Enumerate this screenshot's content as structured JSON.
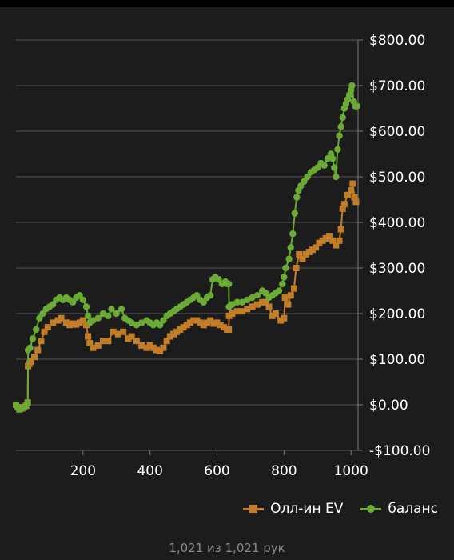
{
  "chart_data": {
    "type": "line",
    "title": "",
    "xlabel": "",
    "ylabel": "",
    "xlim": [
      0,
      1021
    ],
    "ylim": [
      -100,
      800
    ],
    "x_ticks": [
      200,
      400,
      600,
      800,
      1000
    ],
    "x_tick_labels": [
      "200",
      "400",
      "600",
      "800",
      "1000"
    ],
    "y_ticks": [
      800,
      700,
      600,
      500,
      400,
      300,
      200,
      100,
      0,
      -100
    ],
    "y_tick_labels": [
      "$800.00",
      "$700.00",
      "$600.00",
      "$500.00",
      "$400.00",
      "$300.00",
      "$200.00",
      "$100.00",
      "$0.00",
      "-$100.00"
    ],
    "y_axis_position": "right",
    "grid": true,
    "legend": "bottom-right",
    "series": [
      {
        "name": "Олл-ин EV",
        "color": "#c27d28",
        "marker": "square",
        "points": [
          [
            0,
            0
          ],
          [
            5,
            -5
          ],
          [
            10,
            -10
          ],
          [
            18,
            -8
          ],
          [
            25,
            -5
          ],
          [
            30,
            -2
          ],
          [
            35,
            5
          ],
          [
            36,
            85
          ],
          [
            40,
            90
          ],
          [
            45,
            95
          ],
          [
            55,
            105
          ],
          [
            65,
            120
          ],
          [
            75,
            140
          ],
          [
            85,
            160
          ],
          [
            95,
            170
          ],
          [
            110,
            180
          ],
          [
            125,
            185
          ],
          [
            135,
            190
          ],
          [
            150,
            180
          ],
          [
            160,
            175
          ],
          [
            170,
            178
          ],
          [
            180,
            176
          ],
          [
            190,
            180
          ],
          [
            200,
            185
          ],
          [
            210,
            175
          ],
          [
            215,
            150
          ],
          [
            220,
            135
          ],
          [
            230,
            125
          ],
          [
            245,
            130
          ],
          [
            260,
            140
          ],
          [
            275,
            140
          ],
          [
            290,
            160
          ],
          [
            305,
            155
          ],
          [
            320,
            160
          ],
          [
            335,
            145
          ],
          [
            345,
            150
          ],
          [
            360,
            140
          ],
          [
            375,
            130
          ],
          [
            390,
            125
          ],
          [
            400,
            130
          ],
          [
            410,
            125
          ],
          [
            420,
            120
          ],
          [
            430,
            118
          ],
          [
            440,
            125
          ],
          [
            450,
            140
          ],
          [
            460,
            150
          ],
          [
            470,
            155
          ],
          [
            480,
            160
          ],
          [
            490,
            165
          ],
          [
            500,
            170
          ],
          [
            510,
            175
          ],
          [
            520,
            180
          ],
          [
            530,
            185
          ],
          [
            540,
            185
          ],
          [
            550,
            180
          ],
          [
            560,
            175
          ],
          [
            570,
            180
          ],
          [
            580,
            185
          ],
          [
            590,
            178
          ],
          [
            600,
            180
          ],
          [
            610,
            175
          ],
          [
            620,
            170
          ],
          [
            630,
            165
          ],
          [
            635,
            165
          ],
          [
            636,
            195
          ],
          [
            645,
            200
          ],
          [
            660,
            205
          ],
          [
            675,
            205
          ],
          [
            690,
            210
          ],
          [
            705,
            215
          ],
          [
            720,
            220
          ],
          [
            735,
            225
          ],
          [
            745,
            225
          ],
          [
            755,
            215
          ],
          [
            765,
            195
          ],
          [
            775,
            200
          ],
          [
            790,
            185
          ],
          [
            800,
            190
          ],
          [
            803,
            235
          ],
          [
            812,
            220
          ],
          [
            820,
            240
          ],
          [
            830,
            255
          ],
          [
            836,
            300
          ],
          [
            845,
            330
          ],
          [
            855,
            320
          ],
          [
            865,
            330
          ],
          [
            875,
            335
          ],
          [
            885,
            340
          ],
          [
            895,
            345
          ],
          [
            905,
            355
          ],
          [
            915,
            360
          ],
          [
            925,
            365
          ],
          [
            935,
            370
          ],
          [
            945,
            360
          ],
          [
            955,
            350
          ],
          [
            965,
            360
          ],
          [
            970,
            385
          ],
          [
            975,
            430
          ],
          [
            980,
            440
          ],
          [
            990,
            460
          ],
          [
            1000,
            470
          ],
          [
            1005,
            485
          ],
          [
            1010,
            455
          ],
          [
            1015,
            445
          ]
        ]
      },
      {
        "name": "баланс",
        "color": "#6aaa35",
        "marker": "circle",
        "points": [
          [
            0,
            0
          ],
          [
            5,
            -5
          ],
          [
            10,
            -10
          ],
          [
            18,
            -8
          ],
          [
            25,
            -5
          ],
          [
            30,
            -2
          ],
          [
            35,
            5
          ],
          [
            36,
            120
          ],
          [
            42,
            125
          ],
          [
            50,
            145
          ],
          [
            60,
            165
          ],
          [
            70,
            190
          ],
          [
            80,
            200
          ],
          [
            90,
            210
          ],
          [
            100,
            215
          ],
          [
            110,
            220
          ],
          [
            120,
            230
          ],
          [
            130,
            235
          ],
          [
            140,
            230
          ],
          [
            150,
            235
          ],
          [
            160,
            230
          ],
          [
            170,
            225
          ],
          [
            180,
            235
          ],
          [
            190,
            240
          ],
          [
            200,
            230
          ],
          [
            210,
            215
          ],
          [
            215,
            195
          ],
          [
            220,
            180
          ],
          [
            230,
            185
          ],
          [
            245,
            190
          ],
          [
            260,
            200
          ],
          [
            275,
            195
          ],
          [
            285,
            210
          ],
          [
            300,
            200
          ],
          [
            315,
            210
          ],
          [
            325,
            190
          ],
          [
            335,
            185
          ],
          [
            345,
            180
          ],
          [
            360,
            175
          ],
          [
            375,
            180
          ],
          [
            390,
            185
          ],
          [
            400,
            180
          ],
          [
            410,
            175
          ],
          [
            420,
            180
          ],
          [
            430,
            175
          ],
          [
            440,
            185
          ],
          [
            450,
            195
          ],
          [
            460,
            200
          ],
          [
            470,
            205
          ],
          [
            480,
            210
          ],
          [
            490,
            215
          ],
          [
            500,
            220
          ],
          [
            510,
            225
          ],
          [
            520,
            230
          ],
          [
            530,
            235
          ],
          [
            540,
            240
          ],
          [
            550,
            230
          ],
          [
            560,
            225
          ],
          [
            570,
            235
          ],
          [
            580,
            240
          ],
          [
            587,
            275
          ],
          [
            595,
            280
          ],
          [
            605,
            275
          ],
          [
            615,
            265
          ],
          [
            625,
            270
          ],
          [
            630,
            265
          ],
          [
            635,
            265
          ],
          [
            636,
            215
          ],
          [
            645,
            220
          ],
          [
            660,
            225
          ],
          [
            675,
            225
          ],
          [
            690,
            230
          ],
          [
            705,
            235
          ],
          [
            720,
            240
          ],
          [
            735,
            250
          ],
          [
            745,
            245
          ],
          [
            755,
            235
          ],
          [
            765,
            240
          ],
          [
            775,
            245
          ],
          [
            785,
            250
          ],
          [
            795,
            265
          ],
          [
            800,
            280
          ],
          [
            805,
            300
          ],
          [
            815,
            320
          ],
          [
            820,
            345
          ],
          [
            826,
            375
          ],
          [
            832,
            420
          ],
          [
            838,
            455
          ],
          [
            843,
            470
          ],
          [
            850,
            480
          ],
          [
            860,
            490
          ],
          [
            870,
            500
          ],
          [
            880,
            510
          ],
          [
            890,
            515
          ],
          [
            900,
            520
          ],
          [
            910,
            530
          ],
          [
            920,
            525
          ],
          [
            930,
            540
          ],
          [
            940,
            550
          ],
          [
            945,
            540
          ],
          [
            950,
            520
          ],
          [
            955,
            500
          ],
          [
            960,
            560
          ],
          [
            965,
            590
          ],
          [
            970,
            610
          ],
          [
            975,
            630
          ],
          [
            980,
            650
          ],
          [
            985,
            660
          ],
          [
            990,
            670
          ],
          [
            995,
            680
          ],
          [
            1000,
            690
          ],
          [
            1003,
            700
          ],
          [
            1008,
            665
          ],
          [
            1013,
            655
          ],
          [
            1018,
            655
          ]
        ]
      }
    ]
  },
  "legend_items": [
    {
      "label": "Олл-ин EV",
      "color": "#c27d28",
      "marker": "square"
    },
    {
      "label": "баланс",
      "color": "#6aaa35",
      "marker": "circle"
    }
  ],
  "footer": {
    "hands_text": "1,021 из 1,021 рук"
  }
}
